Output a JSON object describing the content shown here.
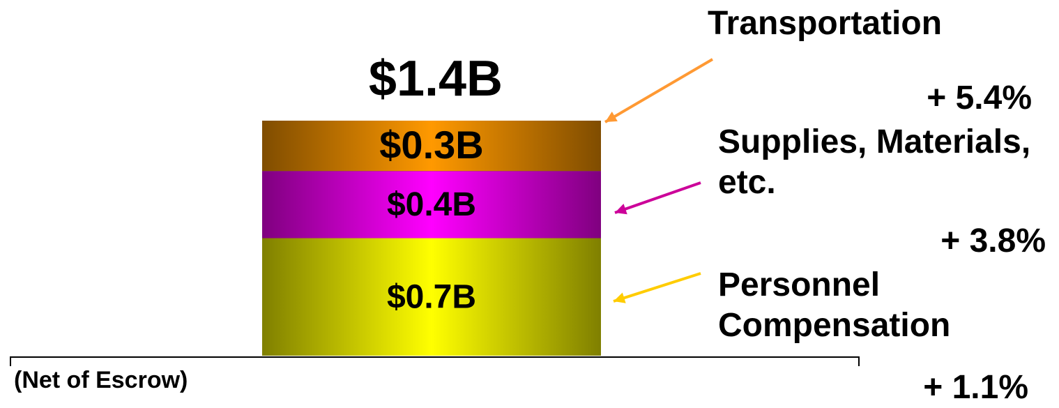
{
  "chart_data": {
    "type": "stacked_bar",
    "total": 1.4,
    "total_label": "$1.4B",
    "note": "(Net of Escrow)",
    "series": [
      {
        "name": "Personnel Compensation",
        "change": "+ 1.1%",
        "color": "#ffff00",
        "arrow_color": "#ffcc00",
        "values": [
          0.7
        ],
        "value_labels": [
          "$0.7B"
        ]
      },
      {
        "name": "Supplies, Materials, etc.",
        "change": "+ 3.8%",
        "color": "#ff00ff",
        "arrow_color": "#cc0099",
        "values": [
          0.4
        ],
        "value_labels": [
          "$0.4B"
        ]
      },
      {
        "name": "Transportation",
        "change": "+ 5.4%",
        "color": "#ff9900",
        "arrow_color": "#ff9933",
        "values": [
          0.3
        ],
        "value_labels": [
          "$0.3B"
        ]
      }
    ]
  }
}
